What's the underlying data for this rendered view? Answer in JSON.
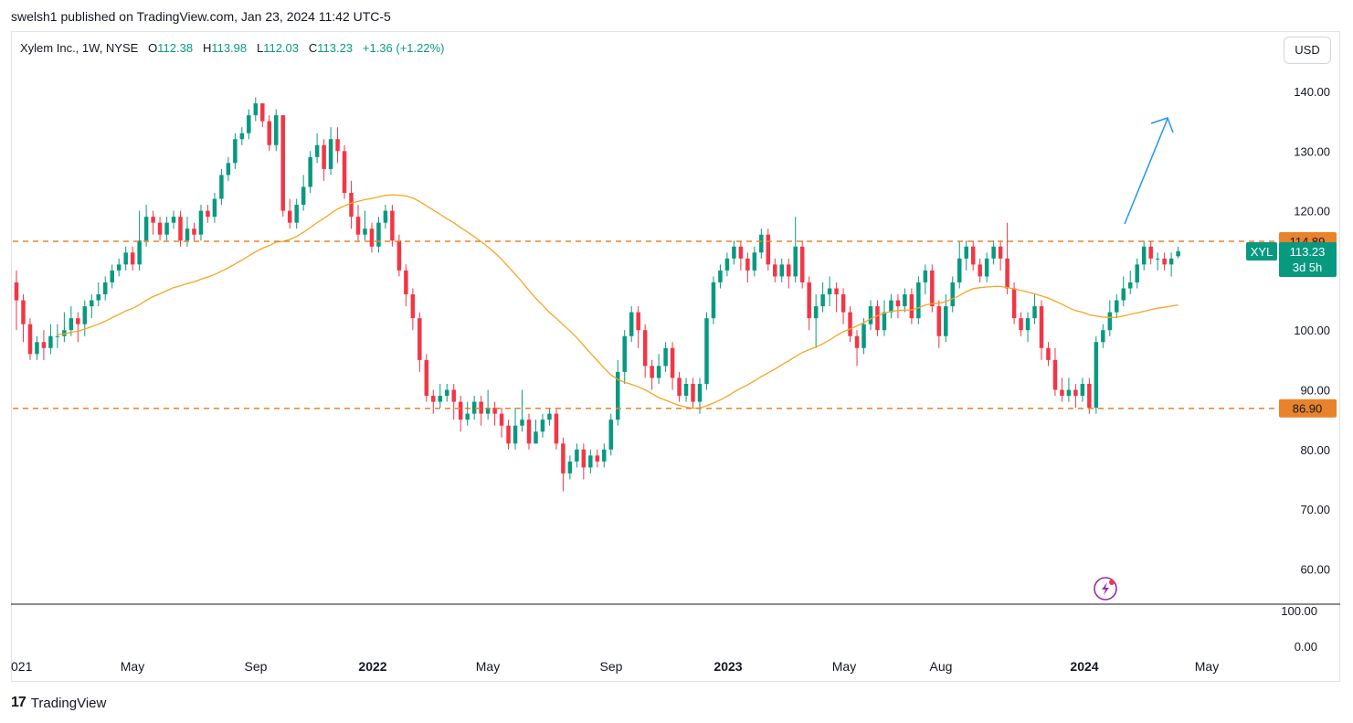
{
  "header": {
    "publisher_line": "swelsh1 published on TradingView.com, Jan 23, 2024 11:42 UTC-5"
  },
  "legend": {
    "symbol": "Xylem Inc., 1W, NYSE",
    "open_label": "O",
    "open": "112.38",
    "high_label": "H",
    "high": "113.98",
    "low_label": "L",
    "low": "112.03",
    "close_label": "C",
    "close": "113.23",
    "change": "+1.36 (+1.22%)"
  },
  "currency_button": "USD",
  "price_tag": {
    "ticker": "XYL",
    "price": "113.23",
    "countdown": "3d 5h"
  },
  "level_tags": {
    "upper": "114.89",
    "lower": "86.90"
  },
  "footer": {
    "brand": "TradingView",
    "logo_glyph": "17"
  },
  "colors": {
    "up": "#089981",
    "down": "#f23645",
    "ma": "#f5a623",
    "level": "#e8832b",
    "arrow": "#2196f3",
    "flash": "#9c27b0"
  },
  "chart_data": {
    "type": "candlestick",
    "timeframe": "1W",
    "y_ticks": [
      "140.00",
      "130.00",
      "120.00",
      "100.00",
      "90.00",
      "80.00",
      "70.00",
      "60.00"
    ],
    "y_tick_values": [
      140,
      130,
      120,
      100,
      90,
      80,
      70,
      60
    ],
    "x_ticks": [
      "021",
      "May",
      "Sep",
      "2022",
      "May",
      "Sep",
      "2023",
      "May",
      "Aug",
      "2024",
      "May"
    ],
    "sub_pane_ticks": [
      "100.00",
      "0.00"
    ],
    "horizontal_levels": [
      114.89,
      86.9
    ],
    "candles": [
      [
        108,
        105,
        110,
        100
      ],
      [
        105,
        101,
        106,
        98
      ],
      [
        101,
        96,
        102,
        95
      ],
      [
        96,
        98,
        99,
        95
      ],
      [
        98,
        97,
        100,
        95
      ],
      [
        97,
        99,
        101,
        96
      ],
      [
        99,
        99,
        101,
        97
      ],
      [
        99,
        100,
        103,
        98
      ],
      [
        100,
        102,
        104,
        99
      ],
      [
        102,
        101,
        103,
        98
      ],
      [
        101,
        104,
        105,
        99
      ],
      [
        104,
        105,
        106,
        102
      ],
      [
        105,
        106,
        108,
        104
      ],
      [
        106,
        108,
        109,
        105
      ],
      [
        108,
        110,
        111,
        107
      ],
      [
        110,
        111,
        112,
        109
      ],
      [
        111,
        113,
        114,
        110
      ],
      [
        113,
        111,
        114,
        110
      ],
      [
        111,
        115,
        120,
        110
      ],
      [
        115,
        119,
        121,
        114
      ],
      [
        119,
        118,
        120,
        116
      ],
      [
        118,
        116,
        119,
        115
      ],
      [
        116,
        118,
        119,
        115
      ],
      [
        118,
        119,
        120,
        117
      ],
      [
        119,
        115,
        120,
        114
      ],
      [
        115,
        117,
        119,
        114
      ],
      [
        117,
        116,
        118,
        115
      ],
      [
        116,
        120,
        121,
        115
      ],
      [
        120,
        119,
        121,
        118
      ],
      [
        119,
        122,
        123,
        118
      ],
      [
        122,
        126,
        127,
        121
      ],
      [
        126,
        128,
        129,
        125
      ],
      [
        128,
        132,
        133,
        127
      ],
      [
        132,
        133,
        134,
        131
      ],
      [
        133,
        136,
        137,
        132
      ],
      [
        136,
        138,
        139,
        135
      ],
      [
        138,
        135,
        138,
        134
      ],
      [
        135,
        131,
        136,
        130
      ],
      [
        131,
        136,
        137,
        130
      ],
      [
        136,
        120,
        136,
        119
      ],
      [
        120,
        118,
        122,
        117
      ],
      [
        118,
        121,
        122,
        117
      ],
      [
        121,
        124,
        126,
        120
      ],
      [
        124,
        129,
        130,
        123
      ],
      [
        129,
        131,
        133,
        128
      ],
      [
        131,
        127,
        132,
        125
      ],
      [
        127,
        132,
        134,
        126
      ],
      [
        132,
        130,
        134,
        128
      ],
      [
        130,
        123,
        131,
        122
      ],
      [
        123,
        119,
        125,
        117
      ],
      [
        119,
        116,
        121,
        115
      ],
      [
        116,
        117,
        120,
        115
      ],
      [
        117,
        114,
        118,
        113
      ],
      [
        114,
        118,
        119,
        113
      ],
      [
        118,
        120,
        121,
        117
      ],
      [
        120,
        115,
        121,
        114
      ],
      [
        115,
        110,
        116,
        109
      ],
      [
        110,
        106,
        111,
        104
      ],
      [
        106,
        102,
        107,
        100
      ],
      [
        102,
        95,
        103,
        93
      ],
      [
        95,
        89,
        96,
        88
      ],
      [
        89,
        88,
        90,
        86
      ],
      [
        88,
        89,
        91,
        87
      ],
      [
        89,
        90,
        91,
        88
      ],
      [
        90,
        88,
        91,
        85
      ],
      [
        88,
        85,
        89,
        83
      ],
      [
        85,
        86,
        88,
        84
      ],
      [
        86,
        88,
        89,
        85
      ],
      [
        88,
        86,
        89,
        84
      ],
      [
        86,
        87,
        90,
        85
      ],
      [
        87,
        86,
        88,
        84
      ],
      [
        86,
        84,
        87,
        82
      ],
      [
        84,
        81,
        85,
        80
      ],
      [
        81,
        84,
        87,
        80
      ],
      [
        84,
        85,
        90,
        83
      ],
      [
        85,
        81,
        86,
        80
      ],
      [
        81,
        83,
        85,
        81
      ],
      [
        83,
        85,
        86,
        82
      ],
      [
        85,
        86,
        87,
        84
      ],
      [
        86,
        81,
        87,
        80
      ],
      [
        81,
        76,
        82,
        73
      ],
      [
        76,
        78,
        79,
        75
      ],
      [
        78,
        80,
        81,
        77
      ],
      [
        80,
        77,
        81,
        75
      ],
      [
        77,
        79,
        80,
        76
      ],
      [
        79,
        78,
        80,
        77
      ],
      [
        78,
        80,
        81,
        77
      ],
      [
        80,
        85,
        86,
        79
      ],
      [
        85,
        93,
        95,
        84
      ],
      [
        93,
        99,
        100,
        91
      ],
      [
        99,
        103,
        104,
        98
      ],
      [
        103,
        100,
        104,
        97
      ],
      [
        100,
        94,
        101,
        92
      ],
      [
        94,
        92,
        95,
        90
      ],
      [
        92,
        94,
        96,
        91
      ],
      [
        94,
        97,
        98,
        93
      ],
      [
        97,
        92,
        98,
        90
      ],
      [
        92,
        89,
        93,
        88
      ],
      [
        89,
        91,
        92,
        88
      ],
      [
        91,
        88,
        92,
        87
      ],
      [
        88,
        91,
        92,
        86
      ],
      [
        91,
        102,
        103,
        90
      ],
      [
        102,
        108,
        109,
        101
      ],
      [
        108,
        110,
        111,
        107
      ],
      [
        110,
        112,
        113,
        109
      ],
      [
        112,
        114,
        115,
        111
      ],
      [
        114,
        112,
        115,
        110
      ],
      [
        112,
        110,
        113,
        108
      ],
      [
        110,
        113,
        114,
        109
      ],
      [
        113,
        116,
        117,
        112
      ],
      [
        116,
        111,
        117,
        110
      ],
      [
        111,
        109,
        112,
        108
      ],
      [
        109,
        111,
        112,
        108
      ],
      [
        111,
        109,
        112,
        107
      ],
      [
        109,
        114,
        119,
        108
      ],
      [
        114,
        108,
        115,
        107
      ],
      [
        108,
        102,
        109,
        100
      ],
      [
        102,
        104,
        106,
        97
      ],
      [
        104,
        106,
        108,
        103
      ],
      [
        106,
        107,
        109,
        104
      ],
      [
        107,
        106,
        108,
        103
      ],
      [
        106,
        103,
        107,
        101
      ],
      [
        103,
        99,
        104,
        98
      ],
      [
        99,
        97,
        100,
        94
      ],
      [
        97,
        101,
        102,
        96
      ],
      [
        101,
        104,
        105,
        100
      ],
      [
        104,
        100,
        105,
        99
      ],
      [
        100,
        103,
        105,
        99
      ],
      [
        103,
        105,
        106,
        102
      ],
      [
        105,
        104,
        106,
        102
      ],
      [
        104,
        106,
        107,
        103
      ],
      [
        106,
        102,
        107,
        101
      ],
      [
        102,
        108,
        109,
        101
      ],
      [
        108,
        110,
        111,
        106
      ],
      [
        110,
        104,
        111,
        103
      ],
      [
        104,
        99,
        105,
        97
      ],
      [
        99,
        104,
        106,
        98
      ],
      [
        104,
        108,
        109,
        103
      ],
      [
        108,
        112,
        115,
        107
      ],
      [
        112,
        114,
        115,
        110
      ],
      [
        114,
        111,
        115,
        110
      ],
      [
        111,
        109,
        112,
        108
      ],
      [
        109,
        112,
        113,
        108
      ],
      [
        112,
        114,
        115,
        111
      ],
      [
        114,
        112,
        115,
        110
      ],
      [
        112,
        107,
        118,
        106
      ],
      [
        107,
        102,
        108,
        101
      ],
      [
        102,
        100,
        103,
        99
      ],
      [
        100,
        102,
        103,
        98
      ],
      [
        102,
        104,
        106,
        101
      ],
      [
        104,
        97,
        105,
        95
      ],
      [
        97,
        95,
        98,
        94
      ],
      [
        95,
        90,
        97,
        89
      ],
      [
        90,
        89,
        92,
        88
      ],
      [
        89,
        90,
        92,
        88
      ],
      [
        90,
        89,
        91,
        87
      ],
      [
        89,
        91,
        92,
        88
      ],
      [
        91,
        87,
        92,
        86
      ],
      [
        87,
        98,
        99,
        86
      ],
      [
        98,
        100,
        101,
        97
      ],
      [
        100,
        103,
        105,
        99
      ],
      [
        103,
        105,
        106,
        102
      ],
      [
        105,
        107,
        109,
        104
      ],
      [
        107,
        108,
        110,
        106
      ],
      [
        108,
        111,
        112,
        107
      ],
      [
        111,
        114,
        115,
        110
      ],
      [
        114,
        112,
        115,
        111
      ],
      [
        112,
        112,
        113,
        110
      ],
      [
        112,
        111,
        113,
        110
      ],
      [
        111,
        112,
        113,
        109
      ],
      [
        112.38,
        113.23,
        113.98,
        112.03
      ]
    ],
    "moving_average_period": 40
  }
}
